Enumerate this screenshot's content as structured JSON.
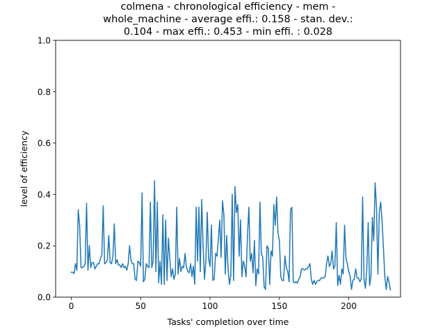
{
  "chart_data": {
    "type": "line",
    "title_lines": [
      "colmena - chronological efficiency - mem -",
      "whole_machine - average effi.: 0.158 - stan. dev.:",
      "0.104 - max effi.: 0.453 - min effi. : 0.028"
    ],
    "xlabel": "Tasks' completion over time",
    "ylabel": "level of efficiency",
    "xlim": [
      -11.3,
      237.3
    ],
    "ylim": [
      0,
      1
    ],
    "xticks": [
      0,
      50,
      100,
      150,
      200
    ],
    "xtick_labels": [
      "0",
      "50",
      "100",
      "150",
      "200"
    ],
    "yticks": [
      0,
      0.2,
      0.4,
      0.6,
      0.8,
      1
    ],
    "ytick_labels": [
      "0.0",
      "0.2",
      "0.4",
      "0.6",
      "0.8",
      "1.0"
    ],
    "grid": false,
    "colors": {
      "line": "#1f77b4"
    },
    "series": [
      {
        "x_start": 0,
        "values": [
          0.097,
          0.097,
          0.092,
          0.13,
          0.105,
          0.34,
          0.28,
          0.115,
          0.115,
          0.12,
          0.13,
          0.365,
          0.105,
          0.2,
          0.115,
          0.135,
          0.135,
          0.11,
          0.12,
          0.13,
          0.13,
          0.15,
          0.165,
          0.355,
          0.13,
          0.135,
          0.145,
          0.24,
          0.135,
          0.13,
          0.16,
          0.285,
          0.13,
          0.145,
          0.125,
          0.125,
          0.115,
          0.13,
          0.115,
          0.12,
          0.105,
          0.13,
          0.2,
          0.145,
          0.13,
          0.13,
          0.07,
          0.065,
          0.14,
          0.135,
          0.12,
          0.405,
          0.06,
          0.07,
          0.13,
          0.12,
          0.115,
          0.37,
          0.115,
          0.14,
          0.453,
          0.1,
          0.37,
          0.056,
          0.14,
          0.05,
          0.32,
          0.05,
          0.3,
          0.065,
          0.23,
          0.15,
          0.08,
          0.11,
          0.07,
          0.09,
          0.35,
          0.09,
          0.15,
          0.1,
          0.12,
          0.115,
          0.17,
          0.115,
          0.1,
          0.095,
          0.13,
          0.08,
          0.12,
          0.05,
          0.35,
          0.14,
          0.35,
          0.1,
          0.38,
          0.2,
          0.07,
          0.14,
          0.33,
          0.15,
          0.12,
          0.28,
          0.065,
          0.07,
          0.17,
          0.16,
          0.225,
          0.3,
          0.155,
          0.375,
          0.32,
          0.09,
          0.24,
          0.11,
          0.05,
          0.085,
          0.4,
          0.065,
          0.43,
          0.33,
          0.36,
          0.16,
          0.3,
          0.08,
          0.14,
          0.12,
          0.08,
          0.24,
          0.35,
          0.14,
          0.17,
          0.095,
          0.22,
          0.045,
          0.11,
          0.09,
          0.37,
          0.17,
          0.155,
          0.04,
          0.03,
          0.2,
          0.19,
          0.05,
          0.18,
          0.16,
          0.36,
          0.28,
          0.39,
          0.25,
          0.22,
          0.08,
          0.065,
          0.065,
          0.16,
          0.115,
          0.1,
          0.06,
          0.34,
          0.35,
          0.06,
          0.055,
          0.06,
          0.055,
          0.07,
          0.08,
          0.11,
          0.11,
          0.105,
          0.11,
          0.11,
          0.12,
          0.13,
          0.07,
          0.05,
          0.065,
          0.05,
          0.06,
          0.065,
          0.065,
          0.075,
          0.075,
          0.075,
          0.08,
          0.13,
          0.16,
          0.12,
          0.13,
          0.18,
          0.11,
          0.12,
          0.29,
          0.045,
          0.085,
          0.05,
          0.11,
          0.09,
          0.28,
          0.15,
          0.13,
          0.1,
          0.08,
          0.03,
          0.065,
          0.07,
          0.11,
          0.075,
          0.075,
          0.06,
          0.07,
          0.39,
          0.07,
          0.035,
          0.11,
          0.29,
          0.045,
          0.08,
          0.31,
          0.22,
          0.445,
          0.35,
          0.09,
          0.33,
          0.37,
          0.3,
          0.19,
          0.08,
          0.03,
          0.08,
          0.06,
          0.028
        ]
      }
    ]
  }
}
